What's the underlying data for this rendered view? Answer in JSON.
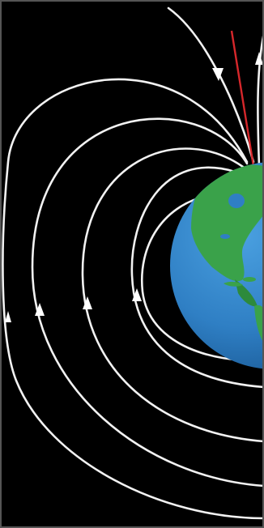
{
  "diagram": {
    "subject": "earth-magnetic-field-lines",
    "colors": {
      "background": "#000000",
      "field_line": "#f2f2f2",
      "axis_line": "#d6272b",
      "ocean": "#2f7fc4",
      "ocean_dark": "#1f5f9e",
      "land": "#3aa24a",
      "land_dark": "#2d8a3c",
      "border": "#6a6a6a"
    },
    "field_lines": [
      {
        "name": "field-line-1",
        "arrow": "down"
      },
      {
        "name": "field-line-2",
        "arrow": "up"
      },
      {
        "name": "field-line-3",
        "arrow": "up"
      },
      {
        "name": "field-line-4",
        "arrow": "up"
      },
      {
        "name": "field-line-5",
        "arrow": "up"
      }
    ],
    "labels": []
  }
}
